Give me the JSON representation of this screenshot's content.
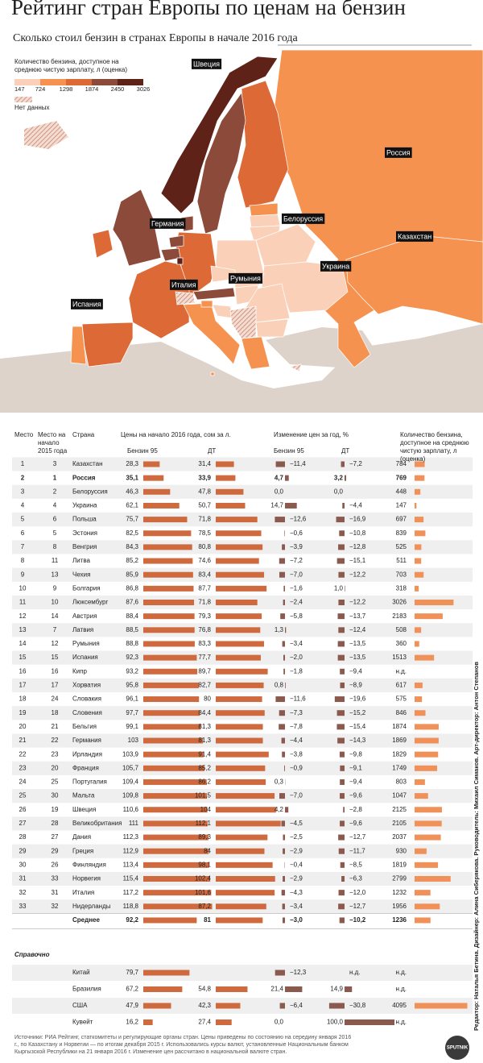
{
  "header": {
    "title": "Рейтинг стран Европы по ценам на бензин",
    "subtitle": "Сколько стоил бензин в странах Европы в начале 2016 года"
  },
  "legend": {
    "title": "Количество бензина, доступное на среднюю чистую зарплату, л (оценка)",
    "ticks": [
      147,
      724,
      1298,
      1874,
      2450,
      3026
    ],
    "colors": [
      "#fbd0b8",
      "#f5924f",
      "#dd6a36",
      "#8c4a3a",
      "#5e2218"
    ],
    "no_data": "Нет данных"
  },
  "map": {
    "labels": [
      "Швеция",
      "Россия",
      "Германия",
      "Белоруссия",
      "Казахстан",
      "Украина",
      "Румыния",
      "Италия",
      "Испания"
    ]
  },
  "table": {
    "columns": {
      "place": "Место",
      "place_2015": "Место на начало 2015 года",
      "country": "Страна",
      "prices": "Цены на начало 2016 года, сом за л.",
      "price_95": "Бензин 95",
      "price_dt": "ДТ",
      "change": "Изменение цен за год, %",
      "change_95": "Бензин 95",
      "change_dt": "ДТ",
      "liters": "Количество бензина, доступное на среднюю чистую зарплату, л (оценка)"
    },
    "rows": [
      [
        1,
        3,
        "Казахстан",
        "28,3",
        "31,4",
        "−11,4",
        "−7,2",
        "784"
      ],
      [
        2,
        1,
        "Россия",
        "35,1",
        "33,9",
        "4,7",
        "3,2",
        "769"
      ],
      [
        3,
        2,
        "Белоруссия",
        "46,3",
        "47,8",
        "0,0",
        "0,0",
        "448"
      ],
      [
        4,
        4,
        "Украина",
        "62,1",
        "50,7",
        "14,7",
        "−4,4",
        "147"
      ],
      [
        5,
        6,
        "Польша",
        "75,7",
        "71,8",
        "−12,6",
        "−16,9",
        "697"
      ],
      [
        6,
        5,
        "Эстония",
        "82,5",
        "78,5",
        "−0,6",
        "−10,8",
        "839"
      ],
      [
        7,
        8,
        "Венгрия",
        "84,3",
        "80,8",
        "−3,9",
        "−12,8",
        "525"
      ],
      [
        8,
        11,
        "Литва",
        "85,2",
        "74,6",
        "−7,2",
        "−15,1",
        "511"
      ],
      [
        9,
        13,
        "Чехия",
        "85,9",
        "83,4",
        "−7,0",
        "−12,2",
        "703"
      ],
      [
        10,
        9,
        "Болгария",
        "86,8",
        "87,7",
        "−1,6",
        "1,0",
        "318"
      ],
      [
        11,
        10,
        "Люксембург",
        "87,6",
        "71,8",
        "−2,4",
        "−12,2",
        "3026"
      ],
      [
        12,
        14,
        "Австрия",
        "88,4",
        "79,3",
        "−5,8",
        "−13,7",
        "2183"
      ],
      [
        13,
        7,
        "Латвия",
        "88,5",
        "76,8",
        "1,3",
        "−12,4",
        "508"
      ],
      [
        14,
        12,
        "Румыния",
        "88,8",
        "83,3",
        "−3,4",
        "−13,5",
        "360"
      ],
      [
        15,
        15,
        "Испания",
        "92,3",
        "77,7",
        "−2,0",
        "−13,5",
        "1513"
      ],
      [
        16,
        16,
        "Кипр",
        "93,2",
        "89,7",
        "−1,8",
        "−9,4",
        "н.д."
      ],
      [
        17,
        17,
        "Хорватия",
        "95,8",
        "82,7",
        "0,8",
        "−8,9",
        "617"
      ],
      [
        18,
        24,
        "Словакия",
        "96,1",
        "80",
        "−11,6",
        "−19,6",
        "575"
      ],
      [
        19,
        18,
        "Словения",
        "97,7",
        "84,4",
        "−7,3",
        "−15,2",
        "846"
      ],
      [
        20,
        21,
        "Бельгия",
        "99,1",
        "81,3",
        "−7,8",
        "−15,4",
        "1874"
      ],
      [
        21,
        22,
        "Германия",
        "103",
        "81,3",
        "−4,4",
        "−14,3",
        "1869"
      ],
      [
        22,
        23,
        "Ирландия",
        "103,9",
        "91,4",
        "−3,8",
        "−9,8",
        "1829"
      ],
      [
        23,
        20,
        "Франция",
        "105,7",
        "85,2",
        "−0,9",
        "−9,1",
        "1749"
      ],
      [
        24,
        25,
        "Португалия",
        "109,4",
        "86,2",
        "0,3",
        "−9,4",
        "803"
      ],
      [
        25,
        30,
        "Мальта",
        "109,8",
        "101,5",
        "−7,0",
        "−9,6",
        "1047"
      ],
      [
        26,
        19,
        "Швеция",
        "110,6",
        "104",
        "4,2",
        "−2,8",
        "2125"
      ],
      [
        27,
        28,
        "Великобритания",
        "111",
        "112,1",
        "−4,5",
        "−9,6",
        "2105"
      ],
      [
        28,
        27,
        "Дания",
        "112,3",
        "89,3",
        "−2,5",
        "−12,7",
        "2037"
      ],
      [
        29,
        29,
        "Греция",
        "112,9",
        "84",
        "−2,9",
        "−11,7",
        "930"
      ],
      [
        30,
        26,
        "Финляндия",
        "113,4",
        "98,1",
        "−0,4",
        "−8,5",
        "1819"
      ],
      [
        31,
        33,
        "Норвегия",
        "115,4",
        "102,4",
        "−2,9",
        "−6,3",
        "2799"
      ],
      [
        32,
        31,
        "Италия",
        "117,2",
        "101,6",
        "−4,3",
        "−12,0",
        "1232"
      ],
      [
        33,
        32,
        "Нидерланды",
        "118,8",
        "87,2",
        "−3,4",
        "−12,7",
        "1956"
      ]
    ],
    "average": [
      "Среднее",
      "92,2",
      "81",
      "−3,0",
      "−10,2",
      "1236"
    ],
    "reference_title": "Справочно",
    "reference_rows": [
      [
        "Китай",
        "79,7",
        null,
        "−12,3",
        "н.д.",
        "н.д."
      ],
      [
        "Бразилия",
        "67,2",
        "54,8",
        "21,4",
        "14,9",
        "н.д."
      ],
      [
        "США",
        "47,9",
        "42,3",
        "−6,4",
        "−30,8",
        "4095"
      ],
      [
        "Кувейт",
        "16,2",
        "27,4",
        "0,0",
        "100,0",
        "н.д."
      ]
    ]
  },
  "footer": {
    "sources": "Источники: РИА Рейтинг, статкомитеты и регулирующие органы стран. Цены приведены по состоянию на середину января 2016 г., по Казахстану и Норвегии — по итогам декабря 2015 г. Использовались курсы валют, установленные Национальным банком Кыргызской Республики на 21 января 2016 г. Изменение цен рассчитано в национальной валюте стран.",
    "credit": "Редактор: Наталья Бетина. Дизайнер: Алина Сиберякова. Руководитель: Михаил Симаков. Арт-директор: Антон Степанов",
    "logo": "SPUTNIK"
  }
}
